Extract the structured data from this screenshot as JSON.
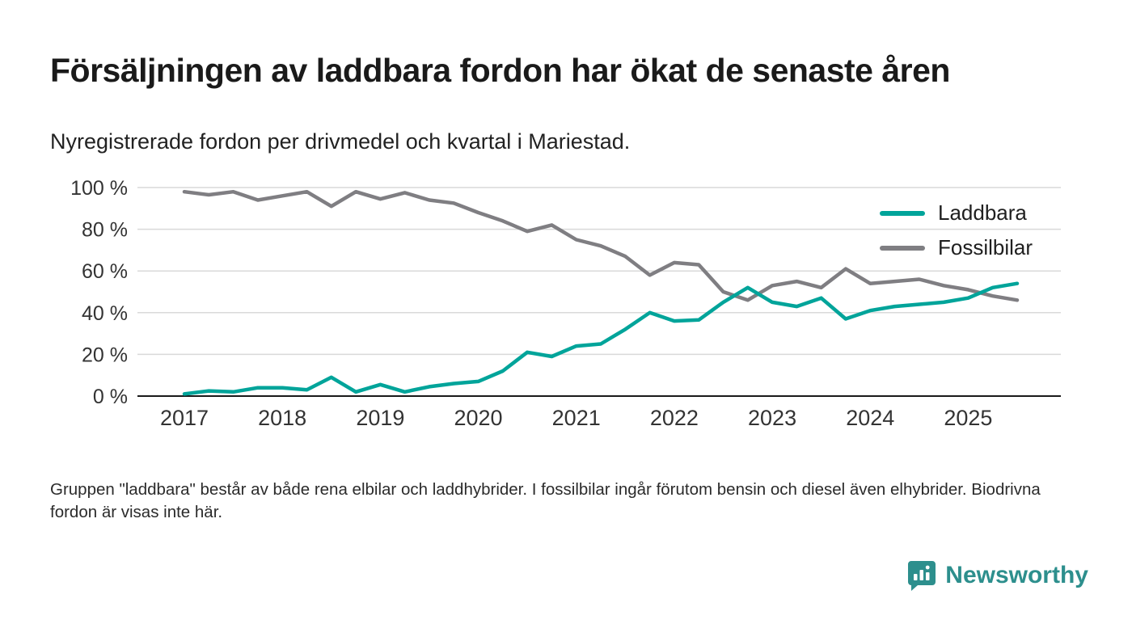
{
  "title": "Försäljningen av laddbara fordon har ökat de senaste åren",
  "subtitle": "Nyregistrerade fordon per drivmedel och kvartal i Mariestad.",
  "footnote": "Gruppen \"laddbara\" består av både rena elbilar och laddhybrider. I fossilbilar ingår förutom bensin och diesel även elhybrider. Biodrivna fordon är visas inte här.",
  "brand": {
    "name": "Newsworthy",
    "color": "#2d8f8d"
  },
  "colors": {
    "laddbara": "#00a49a",
    "fossilbilar": "#7f7e82",
    "gridline": "#d9d9d9",
    "axis": "#1a1a1a",
    "tick_text": "#333333"
  },
  "chart_data": {
    "type": "line",
    "title": "Nyregistrerade fordon per drivmedel och kvartal i Mariestad",
    "x_unit": "quarter",
    "x_start": "2017 Q1",
    "x_end": "2025 Q3",
    "frequency": "quarterly",
    "ylim": [
      0,
      100
    ],
    "grid": true,
    "legend_position": "top-right",
    "y_ticks": [
      {
        "value": 0,
        "label": "0 %"
      },
      {
        "value": 20,
        "label": "20 %"
      },
      {
        "value": 40,
        "label": "40 %"
      },
      {
        "value": 60,
        "label": "60 %"
      },
      {
        "value": 80,
        "label": "80 %"
      },
      {
        "value": 100,
        "label": "100 %"
      }
    ],
    "x_ticks": [
      {
        "index": 0,
        "label": "2017"
      },
      {
        "index": 4,
        "label": "2018"
      },
      {
        "index": 8,
        "label": "2019"
      },
      {
        "index": 12,
        "label": "2020"
      },
      {
        "index": 16,
        "label": "2021"
      },
      {
        "index": 20,
        "label": "2022"
      },
      {
        "index": 24,
        "label": "2023"
      },
      {
        "index": 28,
        "label": "2024"
      },
      {
        "index": 32,
        "label": "2025"
      }
    ],
    "series": [
      {
        "name": "Laddbara",
        "color": "#00a49a",
        "values": [
          1,
          2.5,
          2,
          4,
          4,
          3,
          9,
          2,
          5.5,
          2,
          4.5,
          6,
          7,
          12,
          21,
          19,
          24,
          25,
          32,
          40,
          36,
          36.5,
          45,
          52,
          45,
          43,
          47,
          37,
          41,
          43,
          44,
          45,
          47,
          52,
          54
        ]
      },
      {
        "name": "Fossilbilar",
        "color": "#7f7e82",
        "values": [
          98,
          96.5,
          98,
          94,
          96,
          98,
          91,
          98,
          94.5,
          97.5,
          94,
          92.5,
          88,
          84,
          79,
          82,
          75,
          72,
          67,
          58,
          64,
          63,
          50,
          46,
          53,
          55,
          52,
          61,
          54,
          55,
          56,
          53,
          51,
          48,
          46
        ]
      }
    ]
  }
}
